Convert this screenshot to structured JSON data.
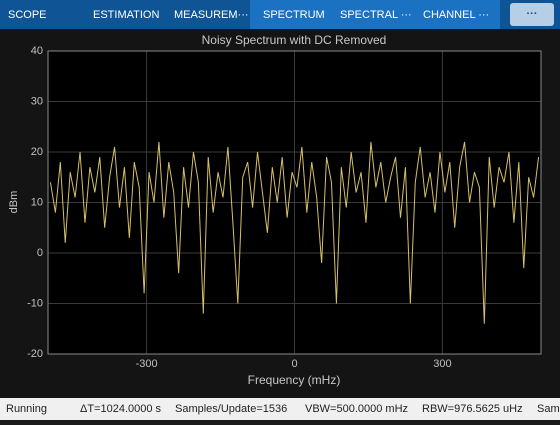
{
  "toolbar": {
    "tabs": [
      "SCOPE",
      "ESTIMATION",
      "MEASUREM···",
      "SPECTRUM",
      "SPECTRAL ···",
      "CHANNEL ···"
    ],
    "more_button": "···"
  },
  "chart_data": {
    "type": "line",
    "title": "Noisy Spectrum with DC Removed",
    "x_label": "Frequency (mHz)",
    "y_label": "dBm",
    "x": [
      -495,
      -485,
      -475,
      -465,
      -455,
      -445,
      -435,
      -425,
      -415,
      -405,
      -395,
      -385,
      -375,
      -365,
      -355,
      -345,
      -335,
      -325,
      -315,
      -305,
      -295,
      -285,
      -275,
      -265,
      -255,
      -245,
      -235,
      -225,
      -215,
      -205,
      -195,
      -185,
      -175,
      -165,
      -155,
      -145,
      -135,
      -125,
      -115,
      -105,
      -95,
      -85,
      -75,
      -65,
      -55,
      -45,
      -35,
      -25,
      -15,
      -5,
      5,
      15,
      25,
      35,
      45,
      55,
      65,
      75,
      85,
      95,
      105,
      115,
      125,
      135,
      145,
      155,
      165,
      175,
      185,
      195,
      205,
      215,
      225,
      235,
      245,
      255,
      265,
      275,
      285,
      295,
      305,
      315,
      325,
      335,
      345,
      355,
      365,
      375,
      385,
      395,
      405,
      415,
      425,
      435,
      445,
      455,
      465,
      475,
      485,
      495
    ],
    "values": [
      14,
      8,
      18,
      2,
      16,
      11,
      20,
      6,
      17,
      12,
      19,
      5,
      15,
      21,
      9,
      17,
      3,
      18,
      13,
      -8,
      16,
      10,
      22,
      7,
      18,
      12,
      -4,
      17,
      9,
      20,
      14,
      -12,
      19,
      8,
      16,
      11,
      21,
      6,
      -10,
      15,
      18,
      9,
      20,
      12,
      4,
      17,
      10,
      19,
      7,
      16,
      13,
      21,
      8,
      18,
      11,
      -2,
      19,
      14,
      -10,
      17,
      9,
      20,
      12,
      16,
      6,
      22,
      13,
      18,
      10,
      15,
      19,
      7,
      17,
      -10,
      14,
      21,
      11,
      16,
      8,
      20,
      12,
      18,
      5,
      17,
      22,
      10,
      16,
      13,
      -14,
      19,
      9,
      17,
      14,
      20,
      6,
      18,
      -3,
      15,
      11,
      19
    ],
    "color": "#d6c068",
    "xlim": [
      -500,
      500
    ],
    "ylim": [
      -20,
      40
    ],
    "xticks": [
      -300,
      0,
      300
    ],
    "yticks": [
      -20,
      -10,
      0,
      10,
      20,
      30,
      40
    ],
    "grid": true
  },
  "status_bar": {
    "items": [
      "Running",
      "ΔT=1024.0000 s",
      "Samples/Update=1536",
      "VBW=500.0000 mHz",
      "RBW=976.5625 uHz",
      "Sam"
    ]
  }
}
